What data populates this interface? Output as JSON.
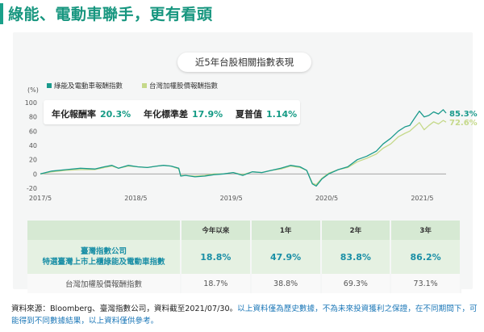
{
  "header": {
    "title": "綠能、電動車聯手，更有看頭"
  },
  "chart_data": {
    "type": "line",
    "title": "近5年台股相關指數表現",
    "ylabel": "(%)",
    "ylim": [
      -20,
      100
    ],
    "yticks": [
      -20,
      0,
      20,
      40,
      60,
      80,
      100
    ],
    "xlim": [
      2017.33,
      2021.58
    ],
    "xticks": [
      {
        "label": "2017/5",
        "x": 2017.33
      },
      {
        "label": "2018/5",
        "x": 2018.33
      },
      {
        "label": "2019/5",
        "x": 2019.33
      },
      {
        "label": "2020/5",
        "x": 2020.33
      },
      {
        "label": "2021/5",
        "x": 2021.33
      }
    ],
    "legend_position": "top-left",
    "series": [
      {
        "name": "綠能及電動車報酬指數",
        "color": "#1a9a8c",
        "end_label": "85.3%",
        "x": [
          2017.33,
          2017.45,
          2017.6,
          2017.75,
          2017.9,
          2018.0,
          2018.08,
          2018.15,
          2018.25,
          2018.35,
          2018.45,
          2018.55,
          2018.62,
          2018.7,
          2018.78,
          2018.8,
          2018.85,
          2018.95,
          2019.05,
          2019.15,
          2019.25,
          2019.35,
          2019.45,
          2019.55,
          2019.65,
          2019.75,
          2019.85,
          2019.95,
          2020.05,
          2020.12,
          2020.18,
          2020.22,
          2020.28,
          2020.35,
          2020.45,
          2020.55,
          2020.65,
          2020.75,
          2020.85,
          2020.92,
          2021.0,
          2021.08,
          2021.15,
          2021.2,
          2021.25,
          2021.3,
          2021.35,
          2021.4,
          2021.45,
          2021.5,
          2021.55,
          2021.58
        ],
        "y": [
          0,
          4,
          6,
          8,
          7,
          10,
          12,
          8,
          12,
          10,
          9,
          11,
          12,
          11,
          8,
          -3,
          -2,
          -4,
          -3,
          -1,
          0,
          2,
          -2,
          3,
          2,
          5,
          8,
          12,
          10,
          5,
          -14,
          -17,
          -7,
          0,
          6,
          10,
          20,
          25,
          32,
          42,
          50,
          60,
          66,
          68,
          78,
          88,
          80,
          82,
          87,
          84,
          90,
          85.3
        ]
      },
      {
        "name": "台灣加權股價報酬指數",
        "color": "#c5d98a",
        "end_label": "72.6%",
        "x": [
          2017.33,
          2017.45,
          2017.6,
          2017.75,
          2017.9,
          2018.0,
          2018.08,
          2018.15,
          2018.25,
          2018.35,
          2018.45,
          2018.55,
          2018.62,
          2018.7,
          2018.78,
          2018.8,
          2018.85,
          2018.95,
          2019.05,
          2019.15,
          2019.25,
          2019.35,
          2019.45,
          2019.55,
          2019.65,
          2019.75,
          2019.85,
          2019.95,
          2020.05,
          2020.12,
          2020.18,
          2020.22,
          2020.28,
          2020.35,
          2020.45,
          2020.55,
          2020.65,
          2020.75,
          2020.85,
          2020.92,
          2021.0,
          2021.08,
          2021.15,
          2021.2,
          2021.25,
          2021.3,
          2021.35,
          2021.4,
          2021.45,
          2021.5,
          2021.55,
          2021.58
        ],
        "y": [
          0,
          3,
          5,
          6,
          6,
          9,
          11,
          8,
          11,
          10,
          9,
          11,
          12,
          11,
          7,
          -2,
          -2,
          -3,
          -2,
          0,
          0,
          2,
          -1,
          3,
          2,
          5,
          7,
          11,
          9,
          5,
          -13,
          -15,
          -6,
          1,
          6,
          9,
          17,
          22,
          28,
          36,
          42,
          52,
          57,
          60,
          66,
          72,
          62,
          68,
          73,
          70,
          75,
          72.6
        ]
      }
    ],
    "stats": [
      {
        "label": "年化報酬率",
        "value": "20.3%"
      },
      {
        "label": "年化標準差",
        "value": "17.9%"
      },
      {
        "label": "夏普值",
        "value": "1.14%"
      }
    ]
  },
  "table": {
    "headers": [
      "",
      "今年以來",
      "1年",
      "2年",
      "3年"
    ],
    "rows": [
      {
        "name_line1": "臺灣指數公司",
        "name_line2": "特選臺灣上市上櫃綠能及電動車指數",
        "values": [
          "18.8%",
          "47.9%",
          "83.8%",
          "86.2%"
        ]
      },
      {
        "name": "台灣加權股價報酬指數",
        "values": [
          "18.7%",
          "38.8%",
          "69.3%",
          "73.1%"
        ]
      }
    ]
  },
  "footnote": {
    "source": "資料來源：Bloomberg、臺灣指數公司，資料截至2021/07/30。",
    "disclaimer": "以上資料僅為歷史數據，不為未來投資獲利之保證，在不同期間下，可能得到不同數據結果，以上資料僅供參考。"
  }
}
